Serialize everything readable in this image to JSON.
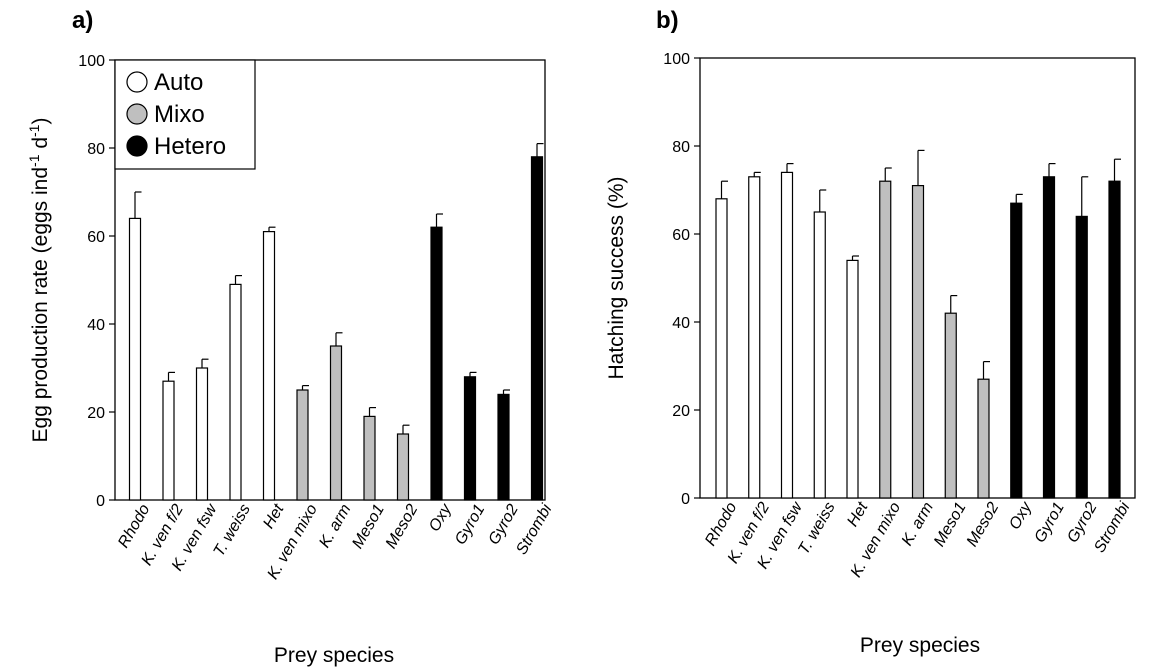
{
  "chart_data": [
    {
      "type": "bar",
      "panel_label": "a)",
      "title": "",
      "xlabel": "Prey species",
      "ylabel": "Egg production rate (eggs ind",
      "ylabel_sup1": "-1",
      "ylabel_mid": " d",
      "ylabel_sup2": "-1",
      "ylabel_end": ")",
      "ylim": [
        0,
        100
      ],
      "yticks": [
        "0",
        "20",
        "40",
        "60",
        "80",
        "100"
      ],
      "yticks_values": [
        0,
        20,
        40,
        60,
        80,
        100
      ],
      "categories": [
        "Rhodo",
        "K. ven f/2",
        "K. ven fsw",
        "T. weiss",
        "Het",
        "K. ven mixo",
        "K. arm",
        "Meso1",
        "Meso2",
        "Oxy",
        "Gyro1",
        "Gyro2",
        "Strombi"
      ],
      "groups": [
        "Auto",
        "Auto",
        "Auto",
        "Auto",
        "Auto",
        "Mixo",
        "Mixo",
        "Mixo",
        "Mixo",
        "Hetero",
        "Hetero",
        "Hetero",
        "Hetero"
      ],
      "values": [
        64,
        27,
        30,
        49,
        61,
        25,
        35,
        19,
        15,
        62,
        28,
        24,
        78
      ],
      "errors": [
        6,
        2,
        2,
        2,
        1,
        1,
        3,
        2,
        2,
        3,
        1,
        1,
        3
      ],
      "legend": {
        "placement": "top-left",
        "entries": [
          {
            "name": "Auto",
            "color": "#ffffff"
          },
          {
            "name": "Mixo",
            "color": "#bfbfbf"
          },
          {
            "name": "Hetero",
            "color": "#000000"
          }
        ]
      },
      "grid": false
    },
    {
      "type": "bar",
      "panel_label": "b)",
      "title": "",
      "xlabel": "Prey species",
      "ylabel": "Hatching success (%)",
      "ylim": [
        0,
        100
      ],
      "yticks": [
        "0",
        "20",
        "40",
        "60",
        "80",
        "100"
      ],
      "yticks_values": [
        0,
        20,
        40,
        60,
        80,
        100
      ],
      "categories": [
        "Rhodo",
        "K. ven f/2",
        "K. ven fsw",
        "T. weiss",
        "Het",
        "K. ven mixo",
        "K. arm",
        "Meso1",
        "Meso2",
        "Oxy",
        "Gyro1",
        "Gyro2",
        "Strombi"
      ],
      "groups": [
        "Auto",
        "Auto",
        "Auto",
        "Auto",
        "Auto",
        "Mixo",
        "Mixo",
        "Mixo",
        "Mixo",
        "Hetero",
        "Hetero",
        "Hetero",
        "Hetero"
      ],
      "values": [
        68,
        73,
        74,
        65,
        54,
        72,
        71,
        42,
        27,
        67,
        73,
        64,
        72
      ],
      "errors": [
        4,
        1,
        2,
        5,
        1,
        3,
        8,
        4,
        4,
        2,
        3,
        9,
        5
      ],
      "grid": false
    }
  ],
  "colors": {
    "Auto": "#ffffff",
    "Mixo": "#bfbfbf",
    "Hetero": "#000000"
  }
}
